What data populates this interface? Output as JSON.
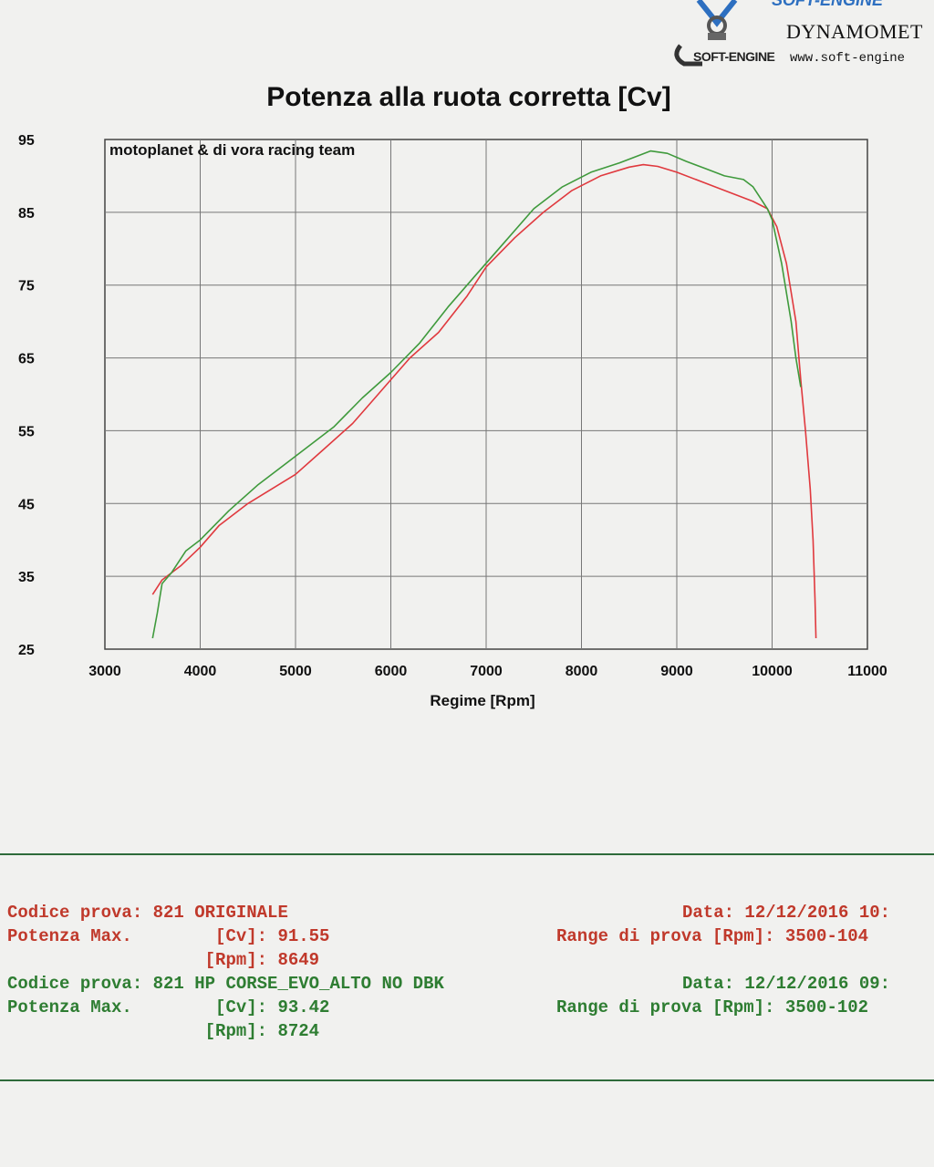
{
  "header": {
    "brand_top": "SOFT-ENGINE",
    "brand_name": "DYNAMOMET",
    "brand_url": "www.soft-engine",
    "soft_engine": "SOFT-ENGINE"
  },
  "chart_data": {
    "type": "line",
    "title": "Potenza alla ruota corretta [Cv]",
    "xlabel": "Regime [Rpm]",
    "ylabel": "",
    "annotation": "motoplanet & di vora racing team",
    "xlim": [
      3000,
      11000
    ],
    "ylim": [
      25,
      95
    ],
    "x_ticks": [
      "3000",
      "4000",
      "5000",
      "6000",
      "7000",
      "8000",
      "9000",
      "10000",
      "11000"
    ],
    "y_ticks": [
      "95",
      "85",
      "75",
      "65",
      "55",
      "45",
      "35",
      "25"
    ],
    "grid": true,
    "series": [
      {
        "color": "#e0393e",
        "x": [
          3500,
          3600,
          3800,
          4000,
          4200,
          4500,
          5000,
          5300,
          5600,
          5800,
          6000,
          6200,
          6500,
          6800,
          7000,
          7300,
          7600,
          7900,
          8200,
          8500,
          8649,
          8800,
          9000,
          9300,
          9600,
          9800,
          9950,
          10050,
          10150,
          10250,
          10300,
          10350,
          10400,
          10430,
          10450,
          10460
        ],
        "y": [
          32.5,
          34.5,
          36.5,
          39,
          42,
          45,
          49,
          52.5,
          56,
          59,
          62,
          65,
          68.5,
          73.5,
          77.5,
          81.5,
          85,
          88,
          90,
          91.2,
          91.55,
          91.3,
          90.5,
          89,
          87.5,
          86.5,
          85.5,
          83,
          78,
          70,
          62,
          55,
          47,
          40,
          32,
          26.5
        ]
      },
      {
        "color": "#3f9a3c",
        "x": [
          3500,
          3550,
          3600,
          3700,
          3850,
          4000,
          4300,
          4600,
          5000,
          5400,
          5700,
          6000,
          6300,
          6600,
          6900,
          7200,
          7500,
          7800,
          8100,
          8400,
          8600,
          8724,
          8900,
          9100,
          9300,
          9500,
          9700,
          9800,
          9900,
          9950,
          10000,
          10100,
          10200,
          10250,
          10300
        ],
        "y": [
          26.5,
          30,
          34,
          35.5,
          38.5,
          40,
          44,
          47.5,
          51.5,
          55.5,
          59.5,
          63,
          67,
          72,
          76.5,
          81,
          85.5,
          88.5,
          90.5,
          91.8,
          92.8,
          93.42,
          93.1,
          92,
          91,
          90,
          89.5,
          88.5,
          86.5,
          85.5,
          84,
          78,
          70,
          65,
          61
        ]
      }
    ]
  },
  "info": {
    "rows": [
      {
        "left": "Codice prova: 821 ORIGINALE",
        "right": "Data: 12/12/2016 10:",
        "color": "red"
      },
      {
        "left": "Potenza Max.        [Cv]: 91.55",
        "right": "Range di prova [Rpm]: 3500-104",
        "color": "red"
      },
      {
        "left": "                   [Rpm]: 8649",
        "right": "",
        "color": "red"
      },
      {
        "left": "Codice prova: 821 HP CORSE_EVO_ALTO NO DBK",
        "right": "Data: 12/12/2016 09:",
        "color": "green"
      },
      {
        "left": "Potenza Max.        [Cv]: 93.42",
        "right": "Range di prova [Rpm]: 3500-102",
        "color": "green"
      },
      {
        "left": "                   [Rpm]: 8724",
        "right": "",
        "color": "green"
      }
    ]
  }
}
